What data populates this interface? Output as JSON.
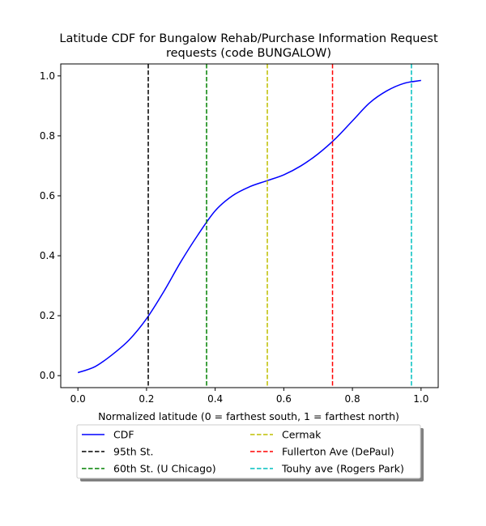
{
  "chart_data": {
    "type": "line",
    "title_line1": "Latitude CDF for Bungalow Rehab/Purchase Information Request",
    "title_line2": "requests (code BUNGALOW)",
    "xlabel": "Normalized latitude (0 = farthest south, 1 = farthest north)",
    "ylabel": "",
    "xlim": [
      -0.05,
      1.05
    ],
    "ylim": [
      -0.04,
      1.04
    ],
    "xticks": [
      0.0,
      0.2,
      0.4,
      0.6,
      0.8,
      1.0
    ],
    "yticks": [
      0.0,
      0.2,
      0.4,
      0.6,
      0.8,
      1.0
    ],
    "xtick_labels": [
      "0.0",
      "0.2",
      "0.4",
      "0.6",
      "0.8",
      "1.0"
    ],
    "ytick_labels": [
      "0.0",
      "0.2",
      "0.4",
      "0.6",
      "0.8",
      "1.0"
    ],
    "grid": false,
    "legend_placement": "below-plot",
    "series": [
      {
        "name": "CDF",
        "color": "#0000ff",
        "style": "solid",
        "x": [
          0.0,
          0.05,
          0.1,
          0.15,
          0.2,
          0.25,
          0.3,
          0.35,
          0.4,
          0.45,
          0.5,
          0.55,
          0.6,
          0.65,
          0.7,
          0.75,
          0.8,
          0.85,
          0.9,
          0.95,
          1.0
        ],
        "y": [
          0.01,
          0.03,
          0.07,
          0.12,
          0.19,
          0.28,
          0.38,
          0.47,
          0.55,
          0.6,
          0.63,
          0.65,
          0.67,
          0.7,
          0.74,
          0.79,
          0.85,
          0.91,
          0.95,
          0.975,
          0.985
        ]
      }
    ],
    "reference_lines": [
      {
        "name": "95th St.",
        "x": 0.205,
        "color": "#000000"
      },
      {
        "name": "60th St. (U Chicago)",
        "x": 0.375,
        "color": "#008000"
      },
      {
        "name": "Cermak",
        "x": 0.552,
        "color": "#bfbf00"
      },
      {
        "name": "Fullerton Ave (DePaul)",
        "x": 0.742,
        "color": "#ff0000"
      },
      {
        "name": "Touhy ave (Rogers Park)",
        "x": 0.972,
        "color": "#00bfbf"
      }
    ]
  }
}
